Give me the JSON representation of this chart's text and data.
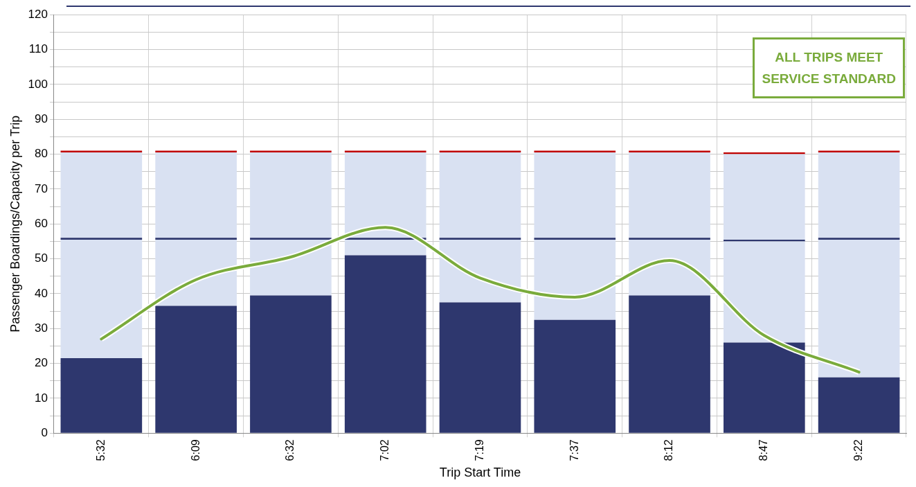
{
  "chart_data": {
    "type": "bar",
    "stacked": true,
    "xlabel": "Trip Start Time",
    "ylabel": "Passenger Boardings/Capacity per Trip",
    "categories": [
      "5:32",
      "6:09",
      "6:32",
      "7:02",
      "7:19",
      "7:37",
      "8:12",
      "8:47",
      "9:22"
    ],
    "series": [
      {
        "color": "#2e376e",
        "values": [
          21.5,
          36.5,
          39.5,
          51,
          37.5,
          32.5,
          39.5,
          26,
          16
        ]
      },
      {
        "color": "#d9e1f2",
        "values": [
          34,
          19,
          16,
          4.5,
          18,
          23,
          16,
          29,
          39.5
        ]
      },
      {
        "color": "#2e376e",
        "values": [
          0.5,
          0.5,
          0.5,
          0.5,
          0.5,
          0.5,
          0.5,
          0.5,
          0.5
        ]
      },
      {
        "color": "#d9e1f2",
        "values": [
          24.5,
          24.5,
          24.5,
          24.5,
          24.5,
          24.5,
          24.5,
          24.5,
          24.5
        ]
      },
      {
        "color": "#c00000",
        "values": [
          0.5,
          0.5,
          0.5,
          0.5,
          0.5,
          0.5,
          0.5,
          0.5,
          0.5
        ]
      },
      {
        "type": "line",
        "color": "#7aab3c",
        "values": [
          27,
          44,
          50.5,
          59,
          44.5,
          39,
          49.5,
          28,
          17.5
        ]
      }
    ],
    "ylim": [
      0,
      120
    ],
    "yticks": [
      0,
      {
        "value": 5,
        "label": null
      },
      10,
      {
        "value": 15,
        "label": null
      },
      20,
      {
        "value": 25,
        "label": null
      },
      30,
      {
        "value": 35,
        "label": null
      },
      40,
      {
        "value": 45,
        "label": null
      },
      50,
      {
        "value": 55,
        "label": null
      },
      60,
      {
        "value": 65,
        "label": null
      },
      70,
      {
        "value": 75,
        "label": null
      },
      80,
      {
        "value": 85,
        "label": null
      },
      90,
      {
        "value": 95,
        "label": null
      },
      100,
      {
        "value": 105,
        "label": null
      },
      110,
      {
        "value": 115,
        "label": null
      },
      120
    ],
    "grid": true,
    "legend": false,
    "marker": "none",
    "line_style": "solid",
    "annotations": [
      "ALL TRIPS MEET\nSERVICE STANDARD"
    ]
  }
}
